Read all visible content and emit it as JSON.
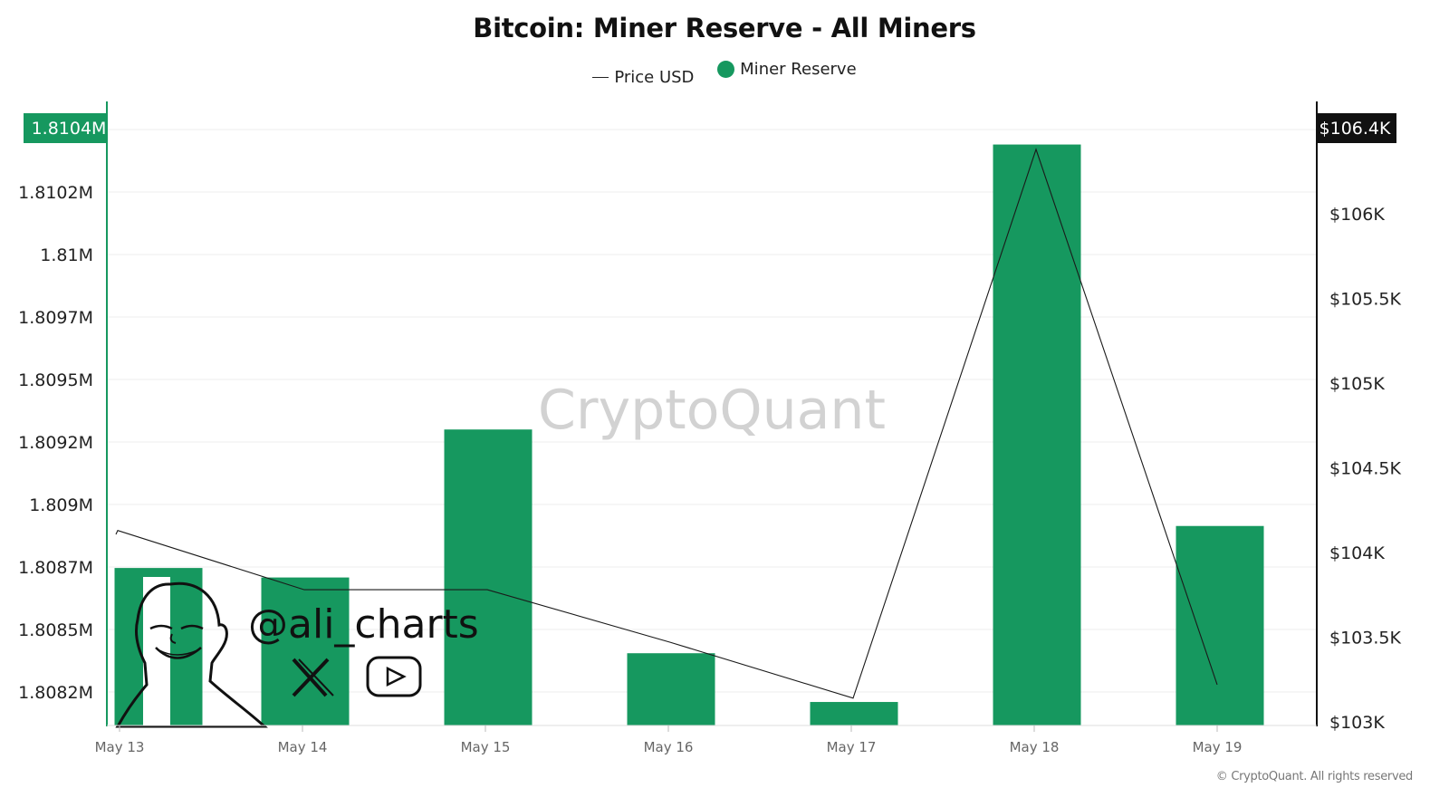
{
  "chart_data": {
    "type": "bar",
    "title": "Bitcoin: Miner Reserve - All Miners",
    "categories": [
      "May 13",
      "May 14",
      "May 15",
      "May 16",
      "May 17",
      "May 18",
      "May 19"
    ],
    "series": [
      {
        "name": "Miner Reserve",
        "type": "bar",
        "axis": "left",
        "values": [
          1808696,
          1808658,
          1809250,
          1808355,
          1808160,
          1810390,
          1808864
        ]
      },
      {
        "name": "Price USD",
        "type": "line",
        "axis": "right",
        "values": [
          104130,
          103780,
          103780,
          103470,
          103140,
          106380,
          103220
        ]
      }
    ],
    "left_axis": {
      "ticks": [
        1808200,
        1808450,
        1808700,
        1808950,
        1809200,
        1809450,
        1809700,
        1809950,
        1810200
      ],
      "tick_labels": [
        "1.8082M",
        "1.8085M",
        "1.8087M",
        "1.809M",
        "1.8092M",
        "1.8095M",
        "1.8097M",
        "1.81M",
        "1.8102M"
      ],
      "current_label": "1.8104M",
      "current_value": 1810450
    },
    "right_axis": {
      "ticks": [
        103000,
        103500,
        104000,
        104500,
        105000,
        105500,
        106000
      ],
      "tick_labels": [
        "$103K",
        "$103.5K",
        "$104K",
        "$104.5K",
        "$105K",
        "$105.5K",
        "$106K"
      ],
      "current_label": "$106.4K",
      "current_value": 106440
    },
    "watermark": "CryptoQuant",
    "legend_position": "top-center",
    "grid": true
  },
  "legend": {
    "price_label": "Price USD",
    "reserve_label": "Miner Reserve"
  },
  "overlay": {
    "handle": "@ali_charts"
  },
  "footer": {
    "copyright": "© CryptoQuant. All rights reserved"
  },
  "colors": {
    "bar": "#16985f",
    "line": "#1a1a1a",
    "right_badge": "#111111",
    "grid": "#eeeeee"
  }
}
